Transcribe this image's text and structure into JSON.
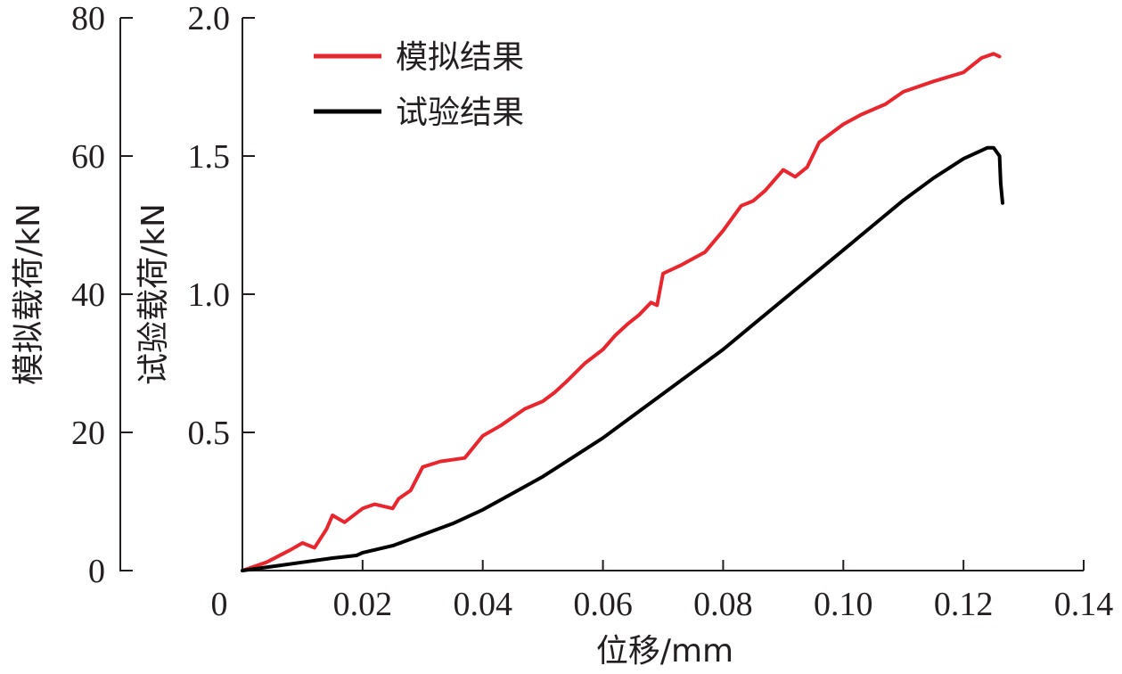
{
  "chart_data": {
    "type": "line",
    "xlabel": "位移/mm",
    "ylabel_left": "模拟载荷/kN",
    "ylabel_right": "试验载荷/kN",
    "xlim": [
      0,
      0.14
    ],
    "ylim_left": [
      0,
      80
    ],
    "ylim_right": [
      0,
      2.0
    ],
    "x_ticks": [
      "0",
      "0.02",
      "0.04",
      "0.06",
      "0.08",
      "0.10",
      "0.12",
      "0.14"
    ],
    "y_left_ticks": [
      "0",
      "20",
      "40",
      "60",
      "80"
    ],
    "y_right_ticks": [
      "0.5",
      "1.0",
      "1.5",
      "2.0"
    ],
    "grid": false,
    "legend": "top-left",
    "series": [
      {
        "name": "模拟结果",
        "color": "#e8262d",
        "axis": "left",
        "x": [
          0,
          0.004,
          0.008,
          0.01,
          0.012,
          0.014,
          0.015,
          0.017,
          0.02,
          0.022,
          0.025,
          0.026,
          0.028,
          0.03,
          0.033,
          0.037,
          0.04,
          0.043,
          0.047,
          0.05,
          0.052,
          0.054,
          0.057,
          0.06,
          0.062,
          0.064,
          0.066,
          0.068,
          0.069,
          0.07,
          0.073,
          0.077,
          0.08,
          0.083,
          0.085,
          0.087,
          0.09,
          0.092,
          0.094,
          0.096,
          0.1,
          0.103,
          0.107,
          0.11,
          0.115,
          0.12,
          0.123,
          0.125,
          0.126
        ],
        "values": [
          0,
          1.2,
          3,
          4,
          3.3,
          6,
          8,
          7,
          9,
          9.6,
          9,
          10.4,
          11.6,
          15,
          15.8,
          16.3,
          19.5,
          21,
          23.4,
          24.5,
          25.8,
          27.4,
          30,
          32,
          34,
          35.6,
          37,
          38.8,
          38.4,
          43,
          44.2,
          46.1,
          49.2,
          52.8,
          53.5,
          55,
          58,
          57,
          58.4,
          62,
          64.6,
          66,
          67.5,
          69.3,
          70.8,
          72.1,
          74.2,
          74.8,
          74.4
        ]
      },
      {
        "name": "试验结果",
        "color": "#000000",
        "axis": "right",
        "x": [
          0,
          0.005,
          0.01,
          0.015,
          0.019,
          0.02,
          0.025,
          0.03,
          0.035,
          0.04,
          0.045,
          0.05,
          0.055,
          0.06,
          0.065,
          0.07,
          0.075,
          0.08,
          0.085,
          0.09,
          0.095,
          0.1,
          0.105,
          0.11,
          0.115,
          0.12,
          0.124,
          0.125,
          0.126,
          0.1262,
          0.1265
        ],
        "values": [
          0,
          0.015,
          0.03,
          0.045,
          0.055,
          0.065,
          0.09,
          0.13,
          0.17,
          0.22,
          0.28,
          0.34,
          0.41,
          0.48,
          0.56,
          0.64,
          0.72,
          0.8,
          0.89,
          0.98,
          1.07,
          1.16,
          1.25,
          1.34,
          1.42,
          1.49,
          1.53,
          1.53,
          1.5,
          1.4,
          1.33
        ]
      }
    ]
  }
}
